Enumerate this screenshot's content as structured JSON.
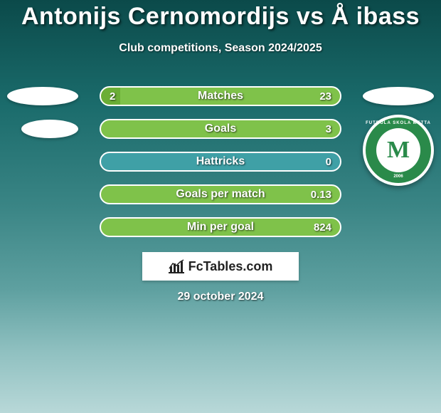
{
  "title": "Antonijs Cernomordijs vs Å ibass",
  "subtitle": "Club competitions, Season 2024/2025",
  "date": "29 october 2024",
  "brand": "FcTables.com",
  "club_logo": {
    "letter": "M",
    "ring_color": "#2a8a4a",
    "top_text": "FUTBOLA SKOLA METTA",
    "bottom_text": "2006"
  },
  "rows": [
    {
      "label": "Matches",
      "left": "2",
      "right": "23",
      "bar_color": "#7fc24a",
      "left_fill_pct": 8,
      "show_left_badge": true,
      "show_right_badge": true
    },
    {
      "label": "Goals",
      "left": "",
      "right": "3",
      "bar_color": "#7fc24a",
      "left_fill_pct": 0,
      "show_left_badge": true,
      "show_right_badge": false,
      "left_badge_small": true
    },
    {
      "label": "Hattricks",
      "left": "",
      "right": "0",
      "bar_color": "#3fa0a6",
      "left_fill_pct": 0,
      "show_left_badge": false,
      "show_right_badge": false
    },
    {
      "label": "Goals per match",
      "left": "",
      "right": "0.13",
      "bar_color": "#7fc24a",
      "left_fill_pct": 0,
      "show_left_badge": false,
      "show_right_badge": false
    },
    {
      "label": "Min per goal",
      "left": "",
      "right": "824",
      "bar_color": "#7fc24a",
      "left_fill_pct": 0,
      "show_left_badge": false,
      "show_right_badge": false
    }
  ],
  "style": {
    "bar_border": "#ffffff",
    "bar_track": "rgba(255,255,255,0.0)"
  }
}
